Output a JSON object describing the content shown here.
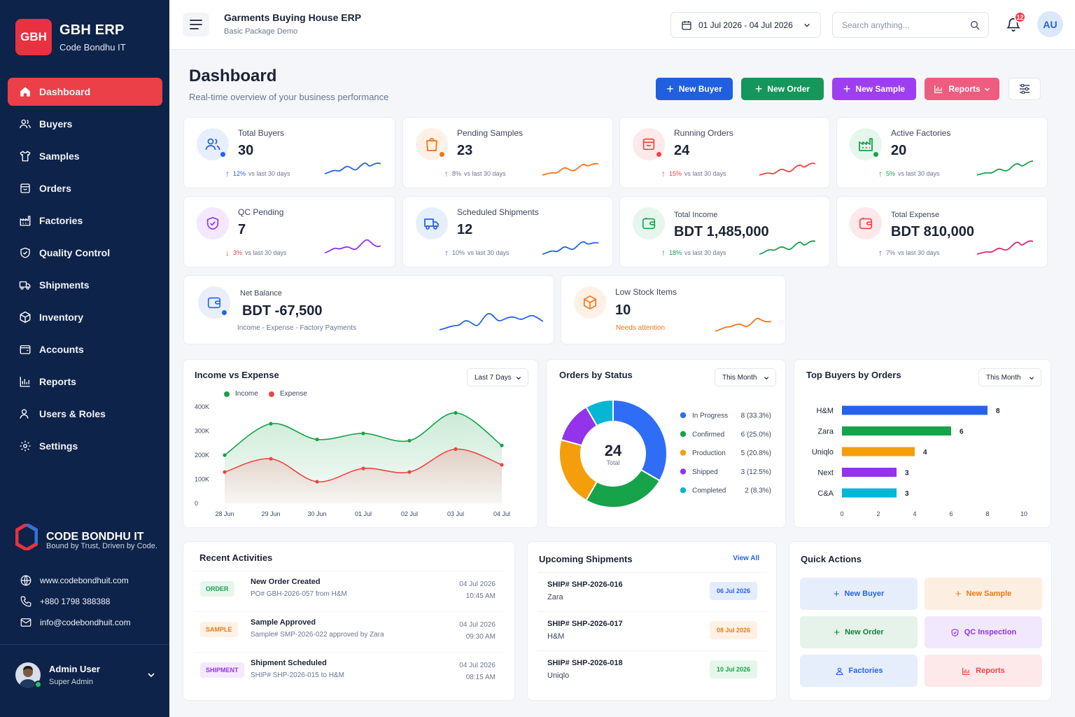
{
  "brand": {
    "logo": "GBH",
    "name": "GBH ERP",
    "sub": "Code Bondhu IT"
  },
  "nav": [
    {
      "label": "Dashboard",
      "icon": "home-icon"
    },
    {
      "label": "Buyers",
      "icon": "users-icon"
    },
    {
      "label": "Samples",
      "icon": "shirt-icon"
    },
    {
      "label": "Orders",
      "icon": "order-icon"
    },
    {
      "label": "Factories",
      "icon": "factory-icon"
    },
    {
      "label": "Quality Control",
      "icon": "shield-icon"
    },
    {
      "label": "Shipments",
      "icon": "truck-icon"
    },
    {
      "label": "Inventory",
      "icon": "box-icon"
    },
    {
      "label": "Accounts",
      "icon": "wallet-icon"
    },
    {
      "label": "Reports",
      "icon": "bar-chart-icon"
    },
    {
      "label": "Users & Roles",
      "icon": "user-roles-icon"
    },
    {
      "label": "Settings",
      "icon": "gear-icon"
    }
  ],
  "company": {
    "name": "CODE BONDHU IT",
    "tagline": "Bound by Trust, Driven by Code.",
    "website": "www.codebondhuit.com",
    "phone": "+880 1798 388388",
    "email": "info@codebondhuit.com"
  },
  "user": {
    "name": "Admin User",
    "role": "Super Admin",
    "initials": "AU"
  },
  "topbar": {
    "title": "Garments Buying House ERP",
    "subtitle": "Basic Package Demo",
    "date_range": "01 Jul 2026 - 04 Jul 2026",
    "search_placeholder": "Search anything...",
    "notifications": "12"
  },
  "page": {
    "title": "Dashboard",
    "subtitle": "Real-time overview of your business performance"
  },
  "actions": {
    "new_buyer": "New Buyer",
    "new_order": "New Order",
    "new_sample": "New Sample",
    "reports": "Reports"
  },
  "stats": [
    {
      "label": "Total Buyers",
      "value": "30",
      "trend": "up",
      "pct": "12%",
      "note": "vs last 30 days",
      "color": "#2563eb",
      "icon": "users-icon"
    },
    {
      "label": "Pending Samples",
      "value": "23",
      "trend": "up",
      "pct": "8%",
      "note": "vs last 30 days",
      "color": "#f97316",
      "icon": "shopping-bag-icon"
    },
    {
      "label": "Running Orders",
      "value": "24",
      "trend": "up",
      "pct": "15%",
      "note": "vs last 30 days",
      "color": "#ef4444",
      "icon": "order-icon"
    },
    {
      "label": "Active Factories",
      "value": "20",
      "trend": "up",
      "pct": "5%",
      "note": "vs last 30 days",
      "color": "#16a34a",
      "icon": "factory-icon"
    },
    {
      "label": "QC Pending",
      "value": "7",
      "trend": "down",
      "pct": "3%",
      "note": "vs last 30 days",
      "color": "#9333ea",
      "icon": "shield-icon"
    },
    {
      "label": "Scheduled Shipments",
      "value": "12",
      "trend": "up",
      "pct": "10%",
      "note": "vs last 30 days",
      "color": "#2563eb",
      "icon": "truck-icon"
    },
    {
      "label": "Total Income",
      "value": "BDT 1,485,000",
      "trend": "up",
      "pct": "18%",
      "note": "vs last 30 days",
      "color": "#16a34a",
      "icon": "wallet-icon"
    },
    {
      "label": "Total Expense",
      "value": "BDT 810,000",
      "trend": "up",
      "pct": "7%",
      "note": "vs last 30 days",
      "color": "#db2777",
      "icon": "wallet-icon"
    }
  ],
  "net_balance": {
    "label": "Net Balance",
    "value": "BDT -67,500",
    "note": "Income - Expense - Factory Payments"
  },
  "low_stock": {
    "label": "Low Stock Items",
    "value": "10",
    "note": "Needs attention"
  },
  "income_expense": {
    "title": "Income vs Expense",
    "range": "Last 7 Days",
    "legend_income": "Income",
    "legend_expense": "Expense"
  },
  "orders_status": {
    "title": "Orders by Status",
    "range": "This Month",
    "total": "24",
    "total_label": "Total"
  },
  "top_buyers": {
    "title": "Top Buyers by Orders",
    "range": "This Month"
  },
  "chart_data": [
    {
      "type": "area",
      "title": "Income vs Expense",
      "categories": [
        "28 Jun",
        "29 Jun",
        "30 Jun",
        "01 Jul",
        "02 Jul",
        "03 Jul",
        "04 Jul"
      ],
      "series": [
        {
          "name": "Income",
          "color": "#16a34a",
          "values": [
            200000,
            330000,
            265000,
            290000,
            260000,
            375000,
            240000
          ]
        },
        {
          "name": "Expense",
          "color": "#ef4444",
          "values": [
            130000,
            185000,
            90000,
            145000,
            130000,
            225000,
            160000
          ]
        }
      ],
      "yticks": [
        "400K",
        "300K",
        "200K",
        "100K",
        "0"
      ],
      "ylim": [
        0,
        400000
      ]
    },
    {
      "type": "pie",
      "title": "Orders by Status",
      "slices": [
        {
          "label": "In Progress",
          "value": 8,
          "display": "8 (33.3%)",
          "color": "#2f6df6"
        },
        {
          "label": "Confirmed",
          "value": 6,
          "display": "6 (25.0%)",
          "color": "#16a34a"
        },
        {
          "label": "Production",
          "value": 5,
          "display": "5 (20.8%)",
          "color": "#f59e0b"
        },
        {
          "label": "Shipped",
          "value": 3,
          "display": "3 (12.5%)",
          "color": "#9333ea"
        },
        {
          "label": "Completed",
          "value": 2,
          "display": "2 (8.3%)",
          "color": "#06b6d4"
        }
      ]
    },
    {
      "type": "bar",
      "title": "Top Buyers by Orders",
      "categories": [
        "H&M",
        "Zara",
        "Uniqlo",
        "Next",
        "C&A"
      ],
      "values": [
        8,
        6,
        4,
        3,
        3
      ],
      "colors": [
        "#2563eb",
        "#16a34a",
        "#f59e0b",
        "#9333ea",
        "#06b6d4"
      ],
      "xticks": [
        "0",
        "2",
        "4",
        "6",
        "8",
        "10"
      ],
      "xlim": [
        0,
        10
      ]
    }
  ],
  "recent": {
    "title": "Recent Activities",
    "items": [
      {
        "badge": "ORDER",
        "title": "New Order Created",
        "sub": "PO# GBH-2026-057 from H&M",
        "date": "04 Jul 2026",
        "time": "10:45 AM"
      },
      {
        "badge": "SAMPLE",
        "title": "Sample Approved",
        "sub": "Sample# SMP-2026-022 approved by Zara",
        "date": "04 Jul 2026",
        "time": "09:30 AM"
      },
      {
        "badge": "SHIPMENT",
        "title": "Shipment Scheduled",
        "sub": "SHIP# SHP-2026-015 to H&M",
        "date": "04 Jul 2026",
        "time": "08:15 AM"
      }
    ]
  },
  "shipments": {
    "title": "Upcoming Shipments",
    "view_all": "View All",
    "items": [
      {
        "title": "SHIP# SHP-2026-016",
        "buyer": "Zara",
        "date": "06 Jul 2026"
      },
      {
        "title": "SHIP# SHP-2026-017",
        "buyer": "H&M",
        "date": "08 Jul 2026"
      },
      {
        "title": "SHIP# SHP-2026-018",
        "buyer": "Uniqlo",
        "date": "10 Jul 2026"
      }
    ]
  },
  "quick": {
    "title": "Quick Actions",
    "items": [
      "New Buyer",
      "New Sample",
      "New Order",
      "QC Inspection",
      "Factories",
      "Reports"
    ]
  }
}
